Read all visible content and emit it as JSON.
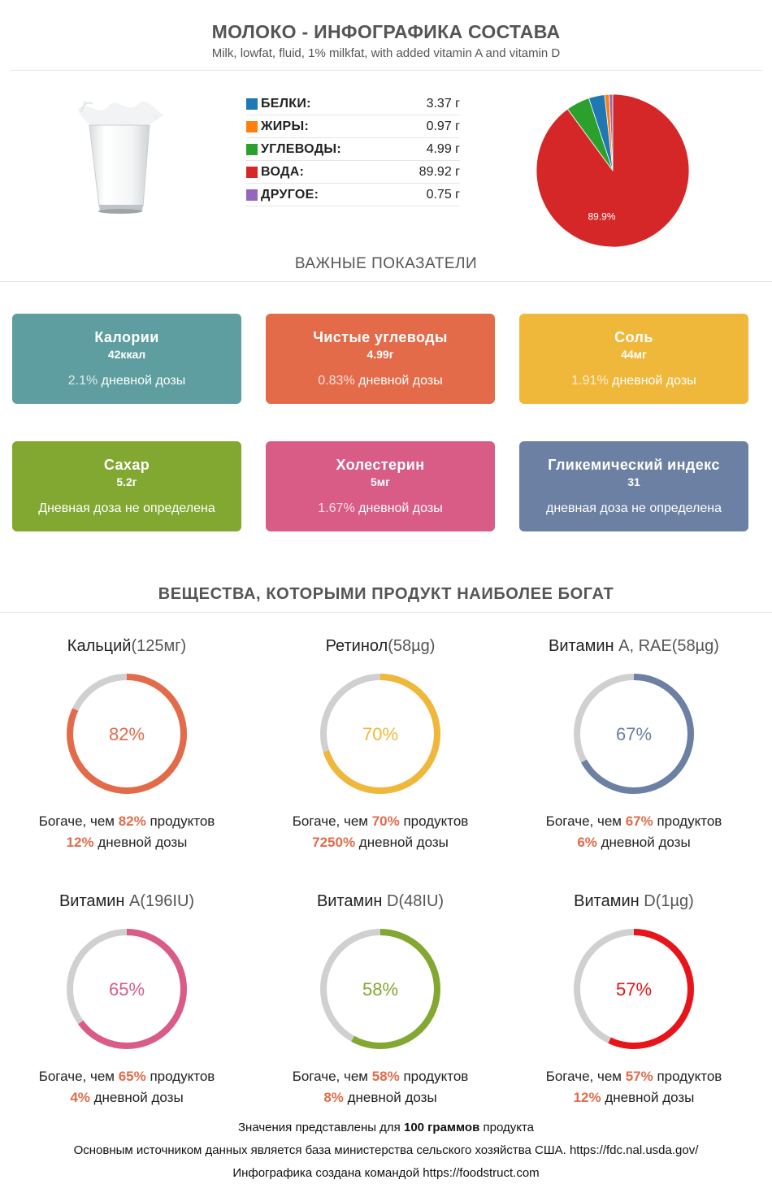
{
  "header": {
    "title": "МОЛОКО - ИНФОГРАФИКА СОСТАВА",
    "subtitle": "Milk, lowfat, fluid, 1% milkfat, with added vitamin A and vitamin D"
  },
  "macros": [
    {
      "label": "БЕЛКИ:",
      "value": "3.37 г",
      "color": "#1f77b4"
    },
    {
      "label": "ЖИРЫ:",
      "value": "0.97 г",
      "color": "#ff7f0e"
    },
    {
      "label": "УГЛЕВОДЫ:",
      "value": "4.99 г",
      "color": "#2ca02c"
    },
    {
      "label": "ВОДА:",
      "value": "89.92 г",
      "color": "#d62728"
    },
    {
      "label": "ДРУГОЕ:",
      "value": "0.75 г",
      "color": "#9467bd"
    }
  ],
  "chart_data": {
    "type": "pie",
    "categories": [
      "БЕЛКИ",
      "ЖИРЫ",
      "УГЛЕВОДЫ",
      "ВОДА",
      "ДРУГОЕ"
    ],
    "values": [
      3.37,
      0.97,
      4.99,
      89.92,
      0.75
    ],
    "colors": [
      "#1f77b4",
      "#ff7f0e",
      "#2ca02c",
      "#d62728",
      "#9467bd"
    ],
    "data_labels": {
      "ВОДА": "89.9%"
    }
  },
  "key_indicators": {
    "title": "ВАЖНЫЕ ПОКАЗАТЕЛИ",
    "cards": [
      {
        "title": "Калории",
        "value": "42ккал",
        "dv_pct": "2.1%",
        "dv_text": " дневной дозы",
        "color": "#5e9ea0"
      },
      {
        "title": "Чистые углеводы",
        "value": "4.99г",
        "dv_pct": "0.83%",
        "dv_text": " дневной дозы",
        "color": "#e36b4a"
      },
      {
        "title": "Соль",
        "value": "44мг",
        "dv_pct": "1.91%",
        "dv_text": " дневной дозы",
        "color": "#f0b83a"
      },
      {
        "title": "Сахар",
        "value": "5.2г",
        "dv_pct": "",
        "dv_text": "Дневная доза не определена",
        "color": "#82a831"
      },
      {
        "title": "Холестерин",
        "value": "5мг",
        "dv_pct": "1.67%",
        "dv_text": " дневной дозы",
        "color": "#d95c86"
      },
      {
        "title": "Гликемический индекс",
        "value": "31",
        "dv_pct": "",
        "dv_text": "дневная доза не определена",
        "color": "#6b80a3"
      }
    ]
  },
  "rich": {
    "title": "ВЕЩЕСТВА, КОТОРЫМИ ПРОДУКТ НАИБОЛЕЕ БОГАТ",
    "rich_prefix": "Богаче, чем ",
    "rich_suffix": " продуктов",
    "dv_suffix": " дневной дозы",
    "items": [
      {
        "name": "Кальций",
        "amount": "(125мг)",
        "percent": 82,
        "percent_label": "82%",
        "dv": "12%",
        "color": "#e36b4a"
      },
      {
        "name": "Ретинол",
        "amount": "(58µg)",
        "percent": 70,
        "percent_label": "70%",
        "dv": "7250%",
        "color": "#f0b83a"
      },
      {
        "name": "Витамин ",
        "amount": "A, RAE(58µg)",
        "percent": 67,
        "percent_label": "67%",
        "dv": "6%",
        "color": "#6b80a3"
      },
      {
        "name": "Витамин ",
        "amount": "A(196IU)",
        "percent": 65,
        "percent_label": "65%",
        "dv": "4%",
        "color": "#d95c86"
      },
      {
        "name": "Витамин ",
        "amount": "D(48IU)",
        "percent": 58,
        "percent_label": "58%",
        "dv": "8%",
        "color": "#82a831"
      },
      {
        "name": "Витамин ",
        "amount": "D(1µg)",
        "percent": 57,
        "percent_label": "57%",
        "dv": "12%",
        "color": "#e8141a"
      }
    ]
  },
  "footer": {
    "line1_a": "Значения представлены для ",
    "line1_b": "100 граммов",
    "line1_c": " продукта",
    "line2": "Основным источником данных является база министерства сельского хозяйства США. https://fdc.nal.usda.gov/",
    "line3": "Инфографика создана командой https://foodstruct.com"
  }
}
